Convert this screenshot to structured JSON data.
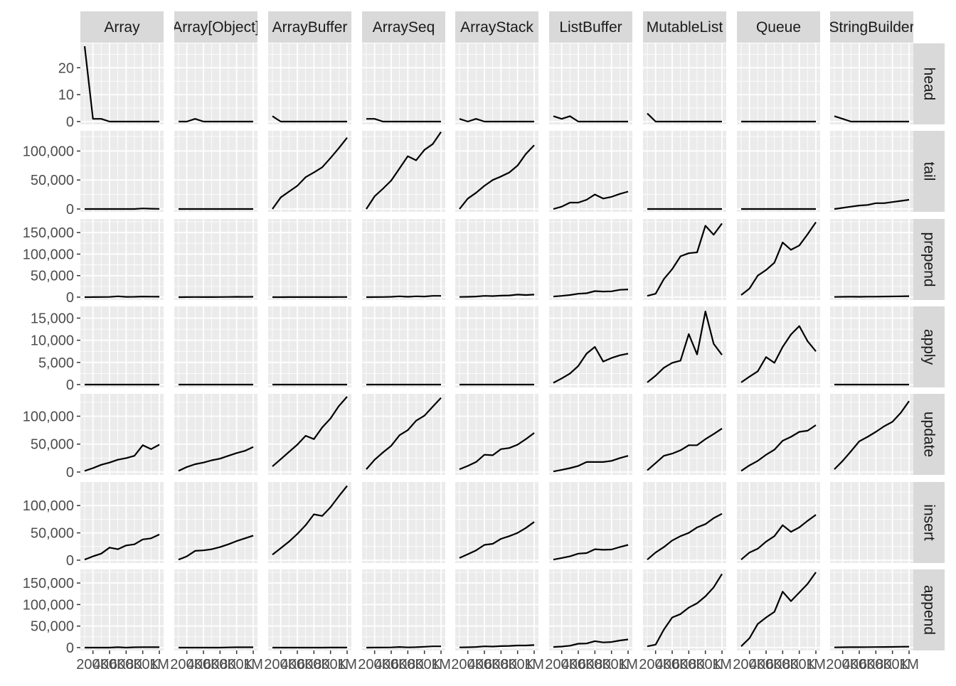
{
  "chart_data": {
    "type": "line",
    "layout": "facet-grid",
    "columns": [
      "Array",
      "Array[Object]",
      "ArrayBuffer",
      "ArraySeq",
      "ArrayStack",
      "ListBuffer",
      "MutableList",
      "Queue",
      "StringBuilder"
    ],
    "rows": [
      "head",
      "tail",
      "prepend",
      "apply",
      "update",
      "insert",
      "append"
    ],
    "x": [
      100000,
      200000,
      300000,
      400000,
      500000,
      600000,
      700000,
      800000,
      900000,
      1000000
    ],
    "x_tick_labels": [
      "200K",
      "400K",
      "600K",
      "800K",
      "1M"
    ],
    "xlim": [
      100000,
      1000000
    ],
    "title": "",
    "xlabel": "",
    "ylabel": "",
    "y_axes": {
      "head": {
        "ylim": [
          0,
          28
        ],
        "ticks": [
          0,
          10,
          20
        ],
        "tick_labels": [
          "0",
          "10",
          "20"
        ]
      },
      "tail": {
        "ylim": [
          0,
          130000
        ],
        "ticks": [
          0,
          50000,
          100000
        ],
        "tick_labels": [
          "0",
          "50,000",
          "100,000"
        ]
      },
      "prepend": {
        "ylim": [
          0,
          175000
        ],
        "ticks": [
          0,
          50000,
          100000,
          150000
        ],
        "tick_labels": [
          "0",
          "50,000",
          "100,000",
          "150,000"
        ]
      },
      "apply": {
        "ylim": [
          0,
          17000
        ],
        "ticks": [
          0,
          5000,
          10000,
          15000
        ],
        "tick_labels": [
          "0",
          "5,000",
          "10,000",
          "15,000"
        ]
      },
      "update": {
        "ylim": [
          0,
          135000
        ],
        "ticks": [
          0,
          50000,
          100000
        ],
        "tick_labels": [
          "0",
          "50,000",
          "100,000"
        ]
      },
      "insert": {
        "ylim": [
          0,
          138000
        ],
        "ticks": [
          0,
          50000,
          100000
        ],
        "tick_labels": [
          "0",
          "50,000",
          "100,000"
        ]
      },
      "append": {
        "ylim": [
          0,
          175000
        ],
        "ticks": [
          0,
          50000,
          100000,
          150000
        ],
        "tick_labels": [
          "0",
          "50,000",
          "100,000",
          "150,000"
        ]
      }
    },
    "series": {
      "head": {
        "Array": [
          28,
          1,
          1,
          0,
          0,
          0,
          0,
          0,
          0,
          0
        ],
        "Array[Object]": [
          0,
          0,
          1,
          0,
          0,
          0,
          0,
          0,
          0,
          0
        ],
        "ArrayBuffer": [
          2,
          0,
          0,
          0,
          0,
          0,
          0,
          0,
          0,
          0
        ],
        "ArraySeq": [
          1,
          1,
          0,
          0,
          0,
          0,
          0,
          0,
          0,
          0
        ],
        "ArrayStack": [
          1,
          0,
          1,
          0,
          0,
          0,
          0,
          0,
          0,
          0
        ],
        "ListBuffer": [
          2,
          1,
          2,
          0,
          0,
          0,
          0,
          0,
          0,
          0
        ],
        "MutableList": [
          3,
          0,
          0,
          0,
          0,
          0,
          0,
          0,
          0,
          0
        ],
        "Queue": [
          0,
          0,
          0,
          0,
          0,
          0,
          0,
          0,
          0,
          0
        ],
        "StringBuilder": [
          2,
          1,
          0,
          0,
          0,
          0,
          0,
          0,
          0,
          0
        ]
      },
      "tail": {
        "Array": [
          0,
          0,
          0,
          0,
          0,
          0,
          0,
          1000,
          500,
          200
        ],
        "Array[Object]": [
          0,
          0,
          0,
          0,
          0,
          0,
          0,
          0,
          0,
          0
        ],
        "ArrayBuffer": [
          0,
          20000,
          30000,
          40000,
          55000,
          63000,
          72000,
          88000,
          105000,
          123000
        ],
        "ArraySeq": [
          0,
          22000,
          35000,
          49000,
          70000,
          91000,
          84000,
          102000,
          112000,
          133000
        ],
        "ArrayStack": [
          0,
          18000,
          28000,
          40000,
          50000,
          56000,
          63000,
          75000,
          95000,
          110000
        ],
        "ListBuffer": [
          0,
          4000,
          11000,
          11000,
          16000,
          25000,
          18000,
          21000,
          26000,
          30000
        ],
        "MutableList": [
          0,
          0,
          0,
          0,
          0,
          0,
          0,
          0,
          0,
          0
        ],
        "Queue": [
          0,
          0,
          0,
          0,
          0,
          0,
          0,
          0,
          0,
          0
        ],
        "StringBuilder": [
          0,
          2000,
          4000,
          6000,
          7000,
          10000,
          10000,
          12000,
          14000,
          16000
        ]
      },
      "prepend": {
        "Array": [
          0,
          200,
          300,
          500,
          2000,
          600,
          800,
          1500,
          1200,
          1000
        ],
        "Array[Object]": [
          0,
          200,
          300,
          200,
          200,
          300,
          500,
          800,
          700,
          800
        ],
        "ArrayBuffer": [
          0,
          0,
          100,
          100,
          100,
          200,
          200,
          200,
          300,
          300
        ],
        "ArraySeq": [
          0,
          200,
          300,
          800,
          2000,
          800,
          2000,
          1500,
          3000,
          3000
        ],
        "ArrayStack": [
          500,
          800,
          1500,
          3000,
          2500,
          3500,
          4000,
          6000,
          5000,
          6000
        ],
        "ListBuffer": [
          1500,
          3000,
          5000,
          8000,
          9000,
          14000,
          13000,
          13500,
          17000,
          18000
        ],
        "MutableList": [
          3000,
          8000,
          42000,
          65000,
          95000,
          102000,
          104000,
          166000,
          145000,
          171000
        ],
        "Queue": [
          5000,
          20000,
          50000,
          63000,
          80000,
          127000,
          110000,
          120000,
          146000,
          174000
        ],
        "StringBuilder": [
          500,
          800,
          1000,
          800,
          1200,
          1200,
          1500,
          1700,
          2000,
          2300
        ]
      },
      "apply": {
        "Array": [
          0,
          0,
          0,
          0,
          0,
          0,
          0,
          0,
          0,
          0
        ],
        "Array[Object]": [
          0,
          0,
          0,
          0,
          0,
          0,
          0,
          0,
          0,
          0
        ],
        "ArrayBuffer": [
          0,
          0,
          0,
          0,
          0,
          0,
          0,
          0,
          0,
          0
        ],
        "ArraySeq": [
          0,
          0,
          0,
          0,
          0,
          0,
          0,
          0,
          0,
          0
        ],
        "ArrayStack": [
          0,
          0,
          0,
          0,
          0,
          0,
          0,
          0,
          0,
          0
        ],
        "ListBuffer": [
          400,
          1400,
          2500,
          4200,
          7000,
          8500,
          5200,
          6000,
          6600,
          7000
        ],
        "MutableList": [
          500,
          2000,
          3800,
          4900,
          5400,
          11400,
          6800,
          16500,
          9200,
          6700
        ],
        "Queue": [
          500,
          1800,
          3000,
          6200,
          4900,
          8500,
          11300,
          13200,
          9800,
          7500
        ],
        "StringBuilder": [
          0,
          0,
          0,
          0,
          0,
          0,
          0,
          0,
          0,
          0
        ]
      },
      "update": {
        "Array": [
          2000,
          7000,
          13000,
          17000,
          22000,
          25000,
          29000,
          48000,
          41000,
          49000
        ],
        "Array[Object]": [
          2000,
          9000,
          14000,
          17000,
          21000,
          24000,
          29000,
          34000,
          38000,
          45000
        ],
        "ArrayBuffer": [
          10000,
          23000,
          36000,
          49000,
          65000,
          59000,
          80000,
          96000,
          118000,
          135000
        ],
        "ArraySeq": [
          5000,
          22000,
          35000,
          47000,
          66000,
          75000,
          92000,
          101000,
          117000,
          133000
        ],
        "ArrayStack": [
          5000,
          11000,
          18000,
          31000,
          30000,
          41000,
          43000,
          49000,
          59000,
          70000
        ],
        "ListBuffer": [
          1000,
          4000,
          7000,
          11000,
          18000,
          18000,
          18000,
          20000,
          25000,
          29000
        ],
        "MutableList": [
          3000,
          16000,
          29000,
          33000,
          39000,
          48000,
          48000,
          59000,
          68000,
          78000
        ],
        "Queue": [
          2000,
          12000,
          20000,
          31000,
          40000,
          56000,
          63000,
          72000,
          74000,
          84000
        ],
        "StringBuilder": [
          5000,
          20000,
          37000,
          55000,
          63000,
          72000,
          82000,
          90000,
          106000,
          127000
        ]
      },
      "insert": {
        "Array": [
          1000,
          7000,
          12000,
          23000,
          20000,
          27000,
          29000,
          38000,
          40000,
          47000
        ],
        "Array[Object]": [
          1000,
          7000,
          17000,
          18000,
          20000,
          24000,
          29000,
          35000,
          40000,
          45000
        ],
        "ArrayBuffer": [
          10000,
          22000,
          34000,
          48000,
          64000,
          84000,
          81000,
          97000,
          117000,
          136000
        ],
        "ArraySeq": [
          null,
          null,
          null,
          null,
          null,
          null,
          null,
          null,
          null,
          null
        ],
        "ArrayStack": [
          4000,
          11000,
          18000,
          28000,
          30000,
          39000,
          44000,
          50000,
          59000,
          70000
        ],
        "ListBuffer": [
          1000,
          4000,
          7000,
          12000,
          13000,
          20000,
          19000,
          19500,
          24000,
          28000
        ],
        "MutableList": [
          1000,
          14000,
          24000,
          36000,
          44000,
          50000,
          60000,
          66000,
          77000,
          85000
        ],
        "Queue": [
          1000,
          14000,
          21000,
          34000,
          44000,
          64000,
          52000,
          60000,
          72000,
          83000
        ],
        "StringBuilder": [
          null,
          null,
          null,
          null,
          null,
          null,
          null,
          null,
          null,
          null
        ]
      },
      "append": {
        "Array": [
          0,
          0,
          0,
          0,
          1000,
          0,
          800,
          1000,
          1000,
          1000
        ],
        "Array[Object]": [
          0,
          0,
          0,
          0,
          0,
          0,
          500,
          800,
          800,
          800
        ],
        "ArrayBuffer": [
          0,
          0,
          0,
          0,
          0,
          0,
          0,
          100,
          100,
          100
        ],
        "ArraySeq": [
          0,
          200,
          300,
          500,
          1500,
          500,
          1000,
          2000,
          3000,
          3000
        ],
        "ArrayStack": [
          500,
          800,
          1500,
          3000,
          2500,
          3500,
          4000,
          5000,
          5000,
          6000
        ],
        "ListBuffer": [
          1500,
          2500,
          4500,
          9000,
          9500,
          15000,
          12000,
          13000,
          16500,
          19000
        ],
        "MutableList": [
          3000,
          7000,
          42000,
          70000,
          78000,
          93000,
          103000,
          119000,
          140000,
          171000
        ],
        "Queue": [
          3000,
          22000,
          55000,
          70000,
          83000,
          130000,
          108000,
          128000,
          148000,
          175000
        ],
        "StringBuilder": [
          500,
          800,
          1000,
          1000,
          1200,
          1300,
          1500,
          1700,
          2000,
          2200
        ]
      }
    },
    "line_color": "#000000",
    "panel_background": "#ebebeb",
    "gridline_color": "#ffffff",
    "strip_background": "#d9d9d9",
    "grid": true,
    "legend": "none"
  }
}
